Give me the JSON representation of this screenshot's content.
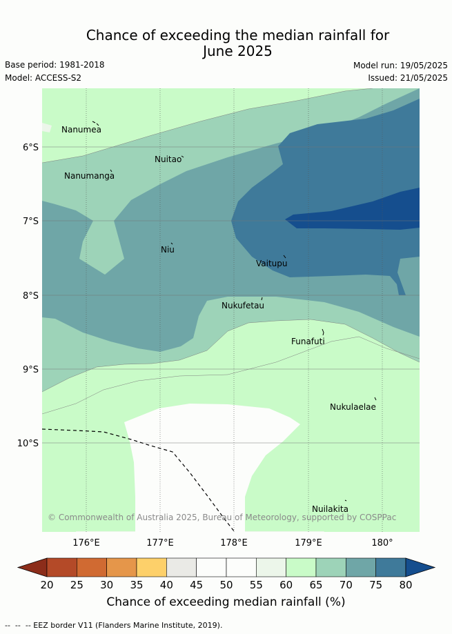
{
  "title_line1": "Chance of exceeding the median rainfall for",
  "title_line2": "June 2025",
  "base_period": "Base period: 1981-2018",
  "model": "Model: ACCESS-S2",
  "model_run": "Model run: 19/05/2025",
  "issued": "Issued: 21/05/2025",
  "copyright": "© Commonwealth of Australia 2025, Bureau of Meteorology, supported by COSPPac",
  "lon_labels": [
    "176°E",
    "177°E",
    "178°E",
    "179°E",
    "180°"
  ],
  "lat_labels": [
    "6°S",
    "7°S",
    "8°S",
    "9°S",
    "10°S"
  ],
  "places": [
    {
      "name": "Nanumea"
    },
    {
      "name": "Nuitao"
    },
    {
      "name": "Nanumanga"
    },
    {
      "name": "Niu"
    },
    {
      "name": "Vaitupu"
    },
    {
      "name": "Nukufetau"
    },
    {
      "name": "Funafuti"
    },
    {
      "name": "Nukulaelae"
    },
    {
      "name": "Nuilakita"
    }
  ],
  "colorbar": {
    "ticks": [
      "20",
      "25",
      "30",
      "35",
      "40",
      "45",
      "50",
      "55",
      "60",
      "65",
      "70",
      "75",
      "80"
    ],
    "colors": [
      "#8c2d1a",
      "#b44a28",
      "#d06a32",
      "#e5964a",
      "#fdd06a",
      "#eaeae6",
      "#fcfdfb",
      "#fcfdfb",
      "#ecf6ea",
      "#c9fbc8",
      "#9dd3b8",
      "#6fa6a7",
      "#3f7a9a",
      "#154e8e"
    ],
    "title": "Chance of exceeding median rainfall (%)"
  },
  "footer_note": "--  --  -- EEZ border V11 (Flanders Marine Institute, 2019)."
}
